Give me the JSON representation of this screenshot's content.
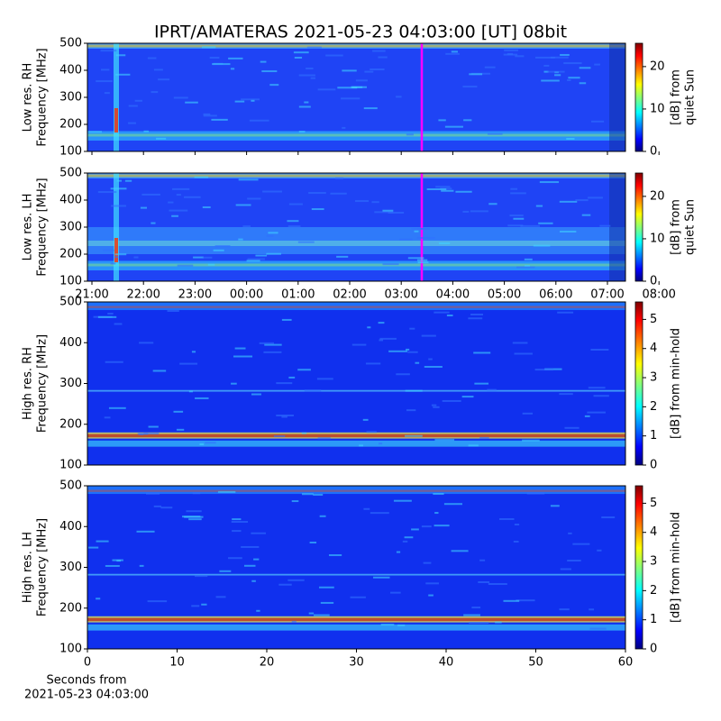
{
  "title": "IPRT/AMATERAS 2021-05-23 04:03:00 [UT]   08bit",
  "chart_data": [
    {
      "type": "heatmap",
      "ylabel": [
        "Low res. RH",
        "Frequency [MHz]"
      ],
      "ylim": [
        100,
        500
      ],
      "yticks": [
        100,
        200,
        300,
        400,
        500
      ],
      "colorbar": {
        "label": [
          "[dB] from",
          "quiet Sun"
        ],
        "lim": [
          0,
          25.5
        ],
        "ticks": [
          0,
          10,
          20
        ]
      }
    },
    {
      "type": "heatmap",
      "ylabel": [
        "Low res. LH",
        "Frequency [MHz]"
      ],
      "ylim": [
        100,
        500
      ],
      "yticks": [
        100,
        200,
        300,
        400,
        500
      ],
      "categories": [
        "21:00",
        "22:00",
        "23:00",
        "00:00",
        "01:00",
        "02:00",
        "03:00",
        "04:00",
        "05:00",
        "06:00",
        "07:00",
        "08:00"
      ],
      "colorbar": {
        "label": [
          "[dB] from",
          "quiet Sun"
        ],
        "lim": [
          0,
          25.5
        ],
        "ticks": [
          0,
          10,
          20
        ]
      }
    },
    {
      "type": "heatmap",
      "ylabel": [
        "High res. RH",
        "Frequency [MHz]"
      ],
      "ylim": [
        100,
        500
      ],
      "yticks": [
        100,
        200,
        300,
        400,
        500
      ],
      "colorbar": {
        "label": [
          "[dB] from min-hold"
        ],
        "lim": [
          0,
          5.6
        ],
        "ticks": [
          0,
          1,
          2,
          3,
          4,
          5
        ]
      }
    },
    {
      "type": "heatmap",
      "ylabel": [
        "High res. LH",
        "Frequency [MHz]"
      ],
      "ylim": [
        100,
        500
      ],
      "yticks": [
        100,
        200,
        300,
        400,
        500
      ],
      "xlabel": [
        "Seconds from",
        "2021-05-23 04:03:00"
      ],
      "xlim": [
        0,
        60
      ],
      "xticks": [
        0,
        10,
        20,
        30,
        40,
        50,
        60
      ],
      "colorbar": {
        "label": [
          "[dB] from min-hold"
        ],
        "lim": [
          0,
          5.6
        ],
        "ticks": [
          0,
          1,
          2,
          3,
          4,
          5
        ]
      }
    }
  ]
}
